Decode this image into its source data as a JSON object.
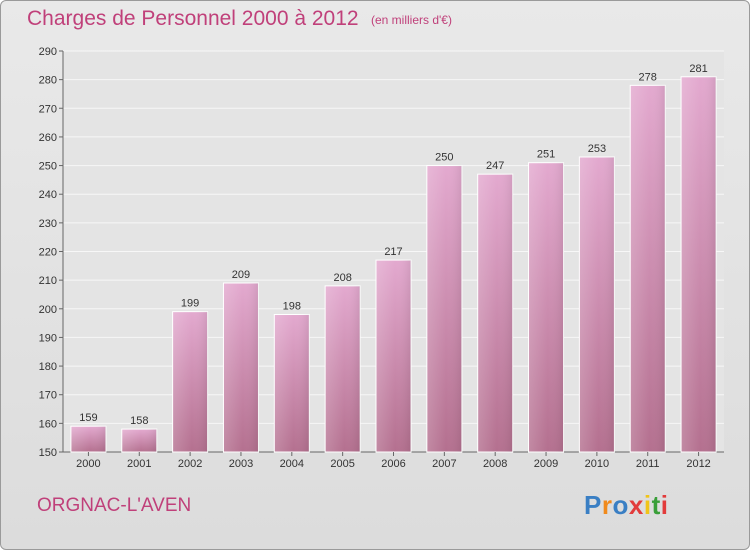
{
  "title": "Charges de Personnel 2000 à 2012",
  "subtitle": "(en milliers d'€)",
  "commune": "ORGNAC-L'AVEN",
  "logo": {
    "letters": [
      "P",
      "r",
      "o",
      "x",
      "i",
      "t",
      "i"
    ],
    "colors": [
      "#3a7fc4",
      "#f08a1c",
      "#3a7fc4",
      "#e23b3b",
      "#f0c419",
      "#3a9f3a",
      "#e23b3b"
    ]
  },
  "colors": {
    "bar_top": "#e3a9cf",
    "bar_bottom": "#b4708f",
    "accent": "#c0407a"
  },
  "chart_data": {
    "type": "bar",
    "title": "Charges de Personnel 2000 à 2012",
    "subtitle": "(en milliers d'€)",
    "categories": [
      "2000",
      "2001",
      "2002",
      "2003",
      "2004",
      "2005",
      "2006",
      "2007",
      "2008",
      "2009",
      "2010",
      "2011",
      "2012"
    ],
    "values": [
      159,
      158,
      199,
      209,
      198,
      208,
      217,
      250,
      247,
      251,
      253,
      278,
      281
    ],
    "ylim": [
      150,
      290
    ],
    "yticks": [
      150,
      160,
      170,
      180,
      190,
      200,
      210,
      220,
      230,
      240,
      250,
      260,
      270,
      280,
      290
    ],
    "grid": true,
    "data_labels": true
  }
}
